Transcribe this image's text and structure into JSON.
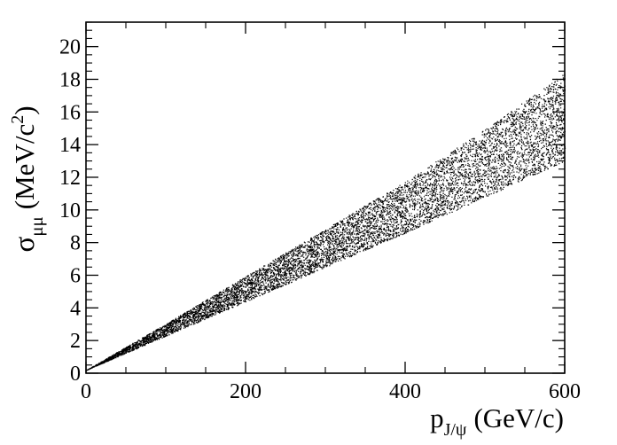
{
  "chart_data": {
    "type": "scatter",
    "title": "",
    "xlabel": "p_J/ψ (GeV/c)",
    "xlabel_parts": {
      "main": "p",
      "sub": "J/ψ",
      "unit": "(GeV/c)"
    },
    "ylabel": "σ_μμ (MeV/c²)",
    "ylabel_parts": {
      "main": "σ",
      "sub": "μμ",
      "unit_pre": "(MeV/c",
      "unit_sup": "2",
      "unit_post": ")"
    },
    "xlim": [
      0,
      600
    ],
    "ylim": [
      0,
      21.5
    ],
    "x_ticks": [
      0,
      200,
      400,
      600
    ],
    "x_tick_labels": [
      "0",
      "200",
      "400",
      "600"
    ],
    "y_ticks": [
      0,
      2,
      4,
      6,
      8,
      10,
      12,
      14,
      16,
      18,
      20
    ],
    "y_tick_labels": [
      "0",
      "2",
      "4",
      "6",
      "8",
      "10",
      "12",
      "14",
      "16",
      "18",
      "20"
    ],
    "grid": false,
    "legend": "none",
    "marker_color": "#000000",
    "band": {
      "x": [
        0,
        100,
        200,
        300,
        400,
        500,
        600
      ],
      "y_lower": [
        0.2,
        2.3,
        4.4,
        6.5,
        8.6,
        10.8,
        13.0
      ],
      "y_upper": [
        0.2,
        3.05,
        5.95,
        8.85,
        11.75,
        14.95,
        18.4
      ]
    }
  }
}
